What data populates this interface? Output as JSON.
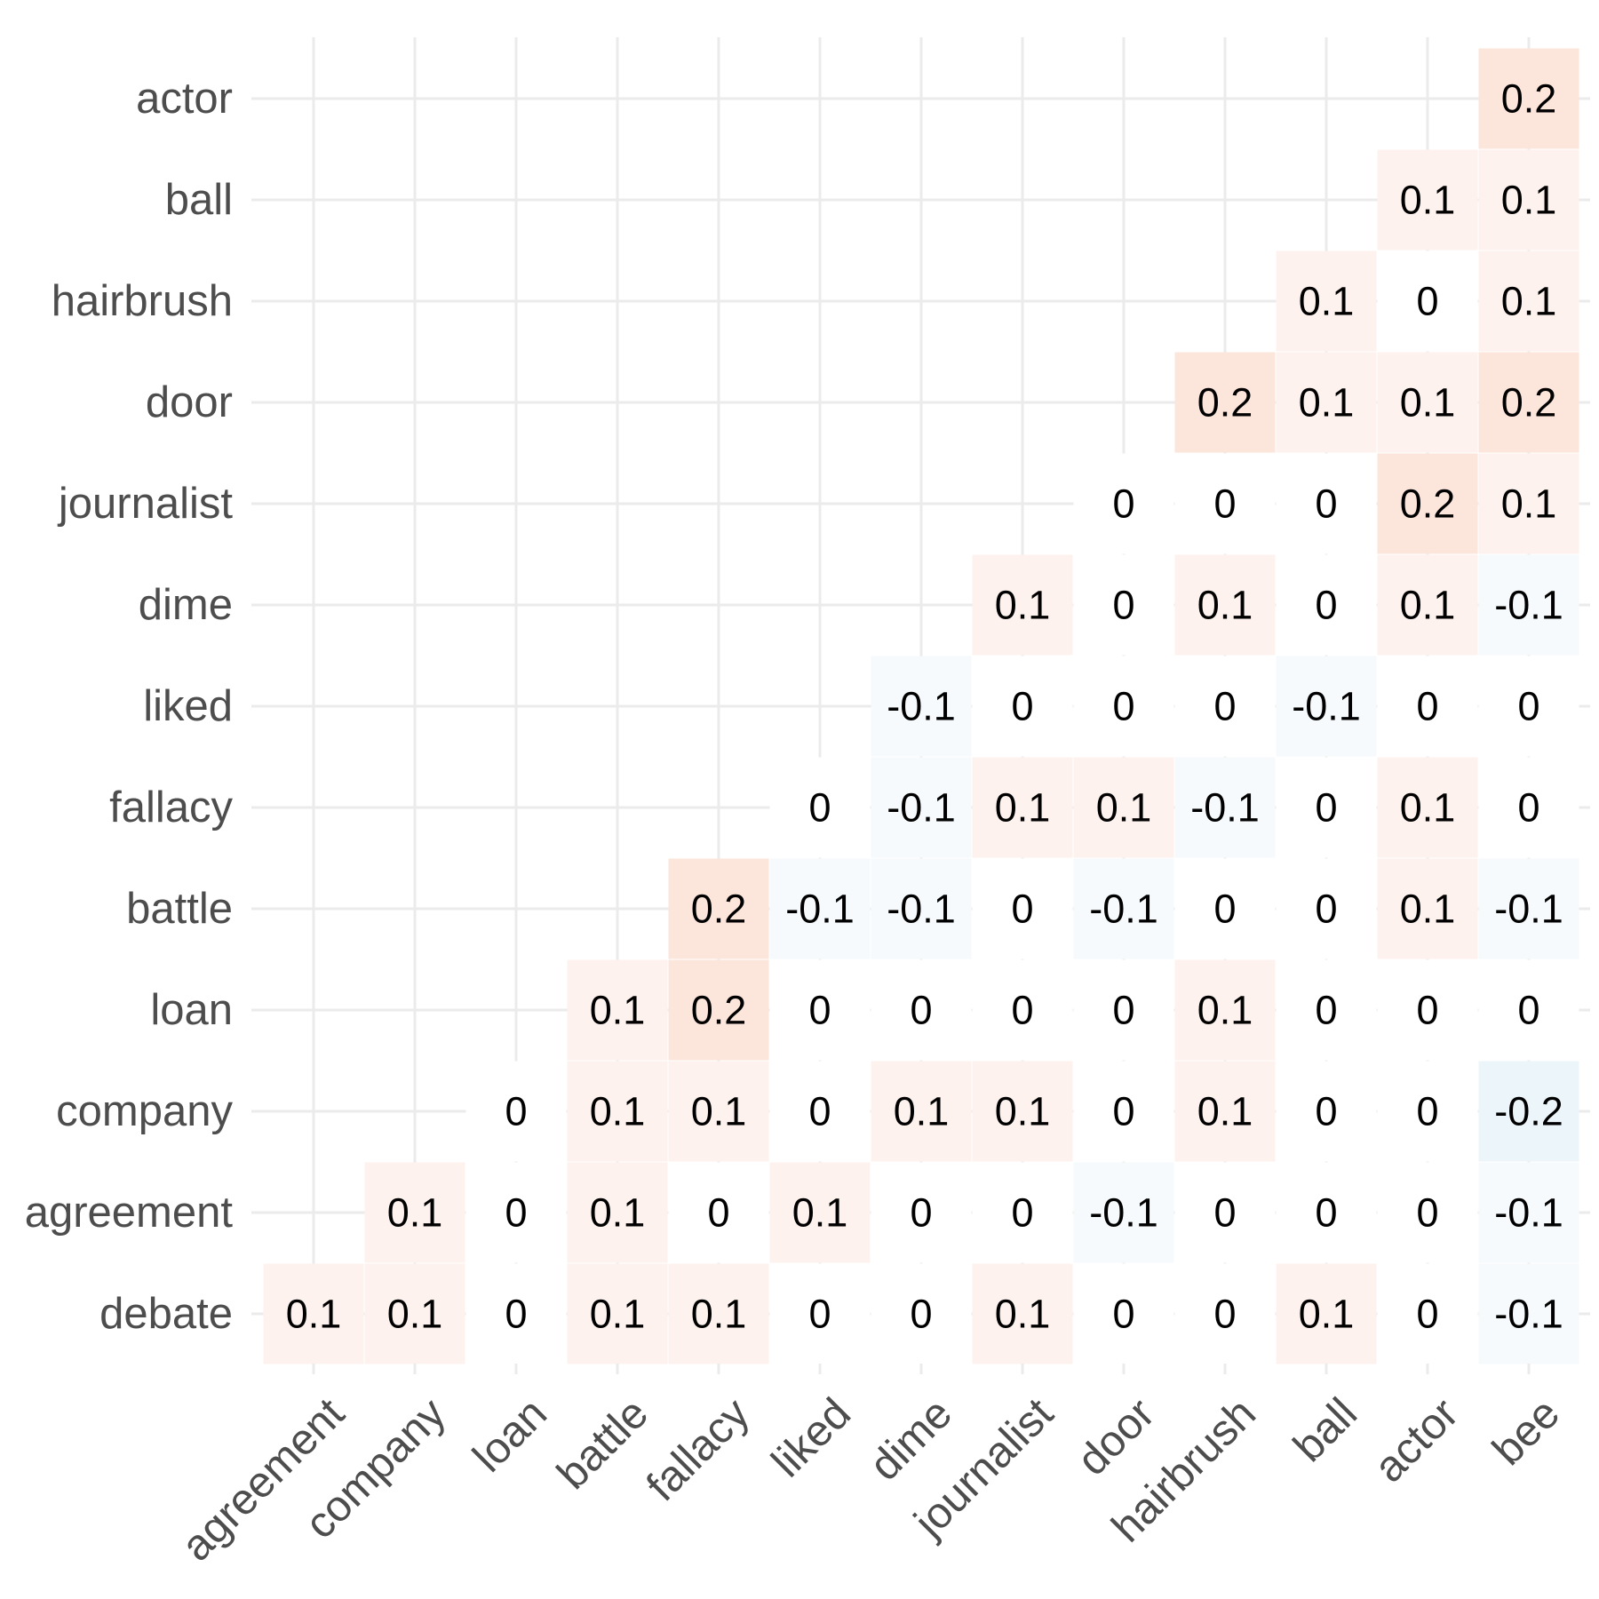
{
  "chart_data": {
    "type": "heatmap",
    "title": "",
    "xlabel": "",
    "ylabel": "",
    "grid": true,
    "legend": "none",
    "x_categories": [
      "agreement",
      "company",
      "loan",
      "battle",
      "fallacy",
      "liked",
      "dime",
      "journalist",
      "door",
      "hairbrush",
      "ball",
      "actor",
      "bee"
    ],
    "y_categories": [
      "debate",
      "agreement",
      "company",
      "loan",
      "battle",
      "fallacy",
      "liked",
      "dime",
      "journalist",
      "door",
      "hairbrush",
      "ball",
      "actor"
    ],
    "values": [
      [
        0.1,
        0.1,
        0,
        0.1,
        0.1,
        0,
        0,
        0.1,
        0,
        0,
        0.1,
        0,
        -0.1
      ],
      [
        null,
        0.1,
        0,
        0.1,
        0,
        0.1,
        0,
        0,
        -0.1,
        0,
        0,
        0,
        -0.1
      ],
      [
        null,
        null,
        0,
        0.1,
        0.1,
        0,
        0.1,
        0.1,
        0,
        0.1,
        0,
        0,
        -0.2
      ],
      [
        null,
        null,
        null,
        0.1,
        0.2,
        0,
        0,
        0,
        0,
        0.1,
        0,
        0,
        0
      ],
      [
        null,
        null,
        null,
        null,
        0.2,
        -0.1,
        -0.1,
        0,
        -0.1,
        0,
        0,
        0.1,
        -0.1
      ],
      [
        null,
        null,
        null,
        null,
        null,
        0,
        -0.1,
        0.1,
        0.1,
        -0.1,
        0,
        0.1,
        0
      ],
      [
        null,
        null,
        null,
        null,
        null,
        null,
        -0.1,
        0,
        0,
        0,
        -0.1,
        0,
        0
      ],
      [
        null,
        null,
        null,
        null,
        null,
        null,
        null,
        0.1,
        0,
        0.1,
        0,
        0.1,
        -0.1
      ],
      [
        null,
        null,
        null,
        null,
        null,
        null,
        null,
        null,
        0,
        0,
        0,
        0.2,
        0.1
      ],
      [
        null,
        null,
        null,
        null,
        null,
        null,
        null,
        null,
        null,
        0.2,
        0.1,
        0.1,
        0.2
      ],
      [
        null,
        null,
        null,
        null,
        null,
        null,
        null,
        null,
        null,
        null,
        0.1,
        0,
        0.1
      ],
      [
        null,
        null,
        null,
        null,
        null,
        null,
        null,
        null,
        null,
        null,
        null,
        0.1,
        0.1
      ],
      [
        null,
        null,
        null,
        null,
        null,
        null,
        null,
        null,
        null,
        null,
        null,
        null,
        0.2
      ]
    ],
    "colors": {
      "positive": "#f4a582",
      "negative": "#92c5de",
      "zero": "#ffffff",
      "text": "#000000",
      "axis_text": "#4d4d4d",
      "grid": "#ebebeb"
    }
  }
}
